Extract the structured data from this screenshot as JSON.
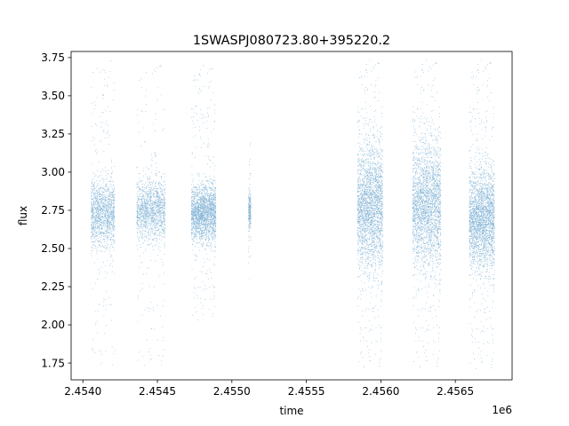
{
  "chart_data": {
    "type": "scatter",
    "title": "1SWASPJ080723.80+395220.2",
    "xlabel": "time",
    "ylabel": "flux",
    "x_offset_label": "1e6",
    "xlim": [
      2453920,
      2456880
    ],
    "ylim": [
      1.64,
      3.79
    ],
    "x_ticks": [
      2453999,
      2454499,
      2454999,
      2455499,
      2455999,
      2456499
    ],
    "x_tick_labels": [
      "2.4540",
      "2.4545",
      "2.4550",
      "2.4555",
      "2.4560",
      "2.4565"
    ],
    "y_ticks": [
      1.75,
      2.0,
      2.25,
      2.5,
      2.75,
      3.0,
      3.25,
      3.5,
      3.75
    ],
    "y_tick_labels": [
      "1.75",
      "2.00",
      "2.25",
      "2.50",
      "2.75",
      "3.00",
      "3.25",
      "3.50",
      "3.75"
    ],
    "grid": false,
    "marker_color": "#1f77b4",
    "season_clusters": [
      {
        "x_range": [
          2454052,
          2454210
        ],
        "center": 2.73,
        "core_sd": 0.11,
        "y_range": [
          1.73,
          3.74
        ],
        "density": "medium"
      },
      {
        "x_range": [
          2454358,
          2454550
        ],
        "center": 2.75,
        "core_sd": 0.1,
        "y_range": [
          1.73,
          3.72
        ],
        "density": "medium"
      },
      {
        "x_range": [
          2454725,
          2454890
        ],
        "center": 2.73,
        "core_sd": 0.09,
        "y_range": [
          2.03,
          3.7
        ],
        "density": "high"
      },
      {
        "x_range": [
          2455108,
          2455125
        ],
        "center": 2.75,
        "core_sd": 0.06,
        "y_range": [
          2.27,
          3.2
        ],
        "density": "low"
      },
      {
        "x_range": [
          2455840,
          2456010
        ],
        "center": 2.77,
        "core_sd": 0.2,
        "y_range": [
          1.72,
          3.74
        ],
        "density": "very_high"
      },
      {
        "x_range": [
          2456210,
          2456400
        ],
        "center": 2.78,
        "core_sd": 0.2,
        "y_range": [
          1.72,
          3.74
        ],
        "density": "very_high"
      },
      {
        "x_range": [
          2456590,
          2456760
        ],
        "center": 2.69,
        "core_sd": 0.16,
        "y_range": [
          1.71,
          3.74
        ],
        "density": "very_high"
      }
    ]
  }
}
